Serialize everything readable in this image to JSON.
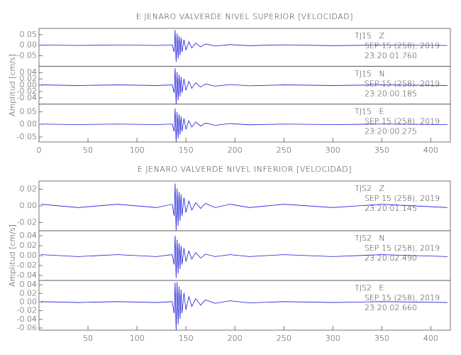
{
  "chart_data": [
    {
      "type": "seismogram",
      "title": "E JENARO VALVERDE NIVEL SUPERIOR [VELOCIDAD]",
      "y_label": "Amplitud [cm/s]",
      "xlim": [
        0,
        420
      ],
      "xticks": [
        0,
        50,
        100,
        150,
        200,
        250,
        300,
        350,
        400
      ],
      "series": [
        {
          "name": "TJ15   Z",
          "date": "SEP 15 (258), 2019",
          "time": "23:20:01.760",
          "color": "#1a1adc",
          "ylim": [
            -0.1,
            0.08
          ],
          "yticks": [
            0.05,
            {
              "value": 0,
              "label": "0.00"
            },
            -0.05
          ],
          "x": [
            2,
            40,
            80,
            120,
            136,
            138,
            139,
            140,
            141,
            142,
            143,
            144,
            145,
            146,
            148,
            150,
            153,
            156,
            160,
            165,
            170,
            180,
            195,
            215,
            250,
            300,
            350,
            417
          ],
          "values": [
            0.001,
            -0.001,
            0.001,
            -0.001,
            0.002,
            -0.032,
            0.072,
            -0.08,
            0.056,
            -0.064,
            0.044,
            -0.048,
            0.036,
            -0.032,
            0.026,
            -0.022,
            0.016,
            -0.013,
            0.01,
            -0.008,
            0.006,
            -0.004,
            0.003,
            -0.002,
            0.002,
            -0.002,
            0.001,
            -0.001
          ]
        },
        {
          "name": "TJ15   N",
          "date": "SEP 15 (258), 2019",
          "time": "23:20:00.185",
          "color": "#1a1adc",
          "ylim": [
            -0.06,
            0.06
          ],
          "yticks": [
            0.04,
            0.02,
            {
              "value": 0,
              "label": "0.00"
            },
            -0.02,
            -0.04
          ],
          "x": [
            2,
            40,
            80,
            120,
            136,
            138,
            139,
            140,
            141,
            142,
            143,
            144,
            145,
            146,
            148,
            150,
            153,
            156,
            160,
            165,
            170,
            180,
            195,
            215,
            250,
            300,
            350,
            417
          ],
          "values": [
            0.001,
            -0.001,
            0.001,
            -0.001,
            0.001,
            -0.024,
            0.054,
            -0.06,
            0.042,
            -0.048,
            0.033,
            -0.036,
            0.027,
            -0.024,
            0.02,
            -0.016,
            0.012,
            -0.01,
            0.008,
            -0.006,
            0.004,
            -0.003,
            0.002,
            -0.002,
            0.001,
            -0.001,
            0.001,
            -0.001
          ]
        },
        {
          "name": "TJ15   E",
          "date": "SEP 15 (258), 2019",
          "time": "23:20:00.275",
          "color": "#1a1adc",
          "ylim": [
            -0.07,
            0.08
          ],
          "yticks": [
            0.05,
            {
              "value": 0,
              "label": "0.00"
            },
            -0.05
          ],
          "x": [
            2,
            40,
            80,
            120,
            136,
            138,
            139,
            140,
            141,
            142,
            143,
            144,
            145,
            146,
            148,
            150,
            153,
            156,
            160,
            165,
            170,
            180,
            195,
            215,
            250,
            300,
            350,
            417
          ],
          "values": [
            0.001,
            -0.001,
            0.001,
            -0.001,
            0.001,
            -0.028,
            0.063,
            -0.07,
            0.049,
            -0.056,
            0.039,
            -0.042,
            0.032,
            -0.028,
            0.023,
            -0.019,
            0.014,
            -0.011,
            0.009,
            -0.007,
            0.005,
            -0.004,
            0.003,
            -0.002,
            0.001,
            -0.001,
            0.001,
            -0.001
          ]
        }
      ]
    },
    {
      "type": "seismogram",
      "title": "E JENARO VALVERDE NIVEL INFERIOR [VELOCIDAD]",
      "y_label": "Amplitud [cm/s]",
      "xlim": [
        0,
        420
      ],
      "xticks": [
        50,
        100,
        150,
        200,
        250,
        300,
        350,
        400
      ],
      "series": [
        {
          "name": "TJS2   Z",
          "date": "SEP 15 (258), 2019",
          "time": "23:20:01.145",
          "color": "#1a1adc",
          "ylim": [
            -0.03,
            0.03
          ],
          "yticks": [
            0.02,
            {
              "value": 0,
              "label": "0.00"
            },
            -0.02
          ],
          "x": [
            2,
            40,
            80,
            120,
            136,
            138,
            139,
            140,
            141,
            142,
            143,
            144,
            145,
            146,
            148,
            150,
            153,
            156,
            160,
            165,
            170,
            180,
            195,
            215,
            250,
            300,
            350,
            417
          ],
          "values": [
            0.002,
            -0.002,
            0.002,
            -0.002,
            0.002,
            -0.012,
            0.027,
            -0.03,
            0.021,
            -0.024,
            0.017,
            -0.018,
            0.014,
            -0.012,
            0.01,
            -0.008,
            0.006,
            -0.005,
            0.004,
            -0.003,
            0.003,
            -0.002,
            0.002,
            -0.002,
            0.002,
            -0.002,
            0.002,
            -0.002
          ]
        },
        {
          "name": "TJS2   N",
          "date": "SEP 15 (258), 2019",
          "time": "23:20:02.490",
          "color": "#1a1adc",
          "ylim": [
            -0.05,
            0.05
          ],
          "yticks": [
            0.04,
            0.02,
            {
              "value": 0,
              "label": "0.00"
            },
            -0.02,
            -0.04
          ],
          "x": [
            2,
            40,
            80,
            120,
            136,
            138,
            139,
            140,
            141,
            142,
            143,
            144,
            145,
            146,
            148,
            150,
            153,
            156,
            160,
            165,
            170,
            180,
            195,
            215,
            250,
            300,
            350,
            417
          ],
          "values": [
            0.002,
            -0.002,
            0.002,
            -0.002,
            0.002,
            -0.018,
            0.04,
            -0.045,
            0.032,
            -0.036,
            0.025,
            -0.027,
            0.02,
            -0.018,
            0.015,
            -0.012,
            0.009,
            -0.007,
            0.006,
            -0.005,
            0.003,
            -0.002,
            0.002,
            -0.002,
            0.002,
            -0.002,
            0.002,
            -0.002
          ]
        },
        {
          "name": "TJS2   E",
          "date": "SEP 15 (258), 2019",
          "time": "23:20:02.660",
          "color": "#1a1adc",
          "ylim": [
            -0.065,
            0.05
          ],
          "yticks": [
            0.04,
            0.02,
            {
              "value": 0,
              "label": "0.00"
            },
            -0.02,
            -0.04,
            -0.06
          ],
          "x": [
            2,
            40,
            80,
            120,
            136,
            138,
            139,
            140,
            141,
            142,
            143,
            144,
            145,
            146,
            148,
            150,
            153,
            156,
            160,
            165,
            170,
            180,
            195,
            215,
            250,
            300,
            350,
            417
          ],
          "values": [
            0.001,
            -0.001,
            0.001,
            -0.001,
            0.001,
            -0.026,
            0.045,
            -0.065,
            0.046,
            -0.052,
            0.036,
            -0.039,
            0.029,
            -0.026,
            0.021,
            -0.018,
            0.013,
            -0.01,
            0.008,
            -0.007,
            0.005,
            -0.003,
            0.003,
            -0.002,
            0.001,
            -0.001,
            0.001,
            -0.001
          ]
        }
      ]
    }
  ]
}
